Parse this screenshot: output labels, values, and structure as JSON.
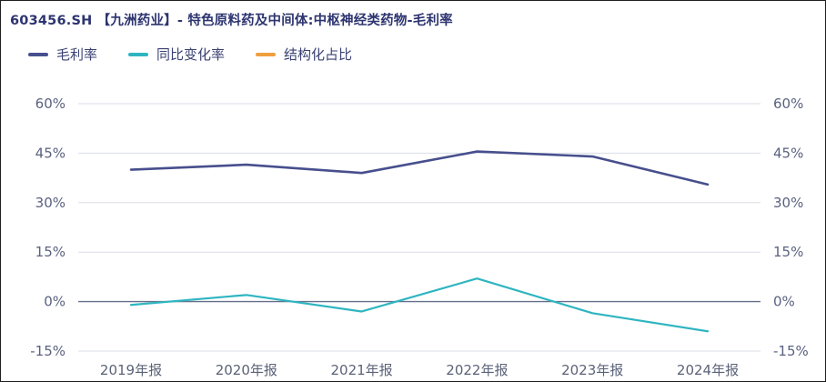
{
  "header": {
    "title": "603456.SH 【九洲药业】- 特色原料药及中间体:中枢神经类药物-毛利率"
  },
  "chart_data": {
    "type": "line",
    "title": "603456.SH 【九洲药业】- 特色原料药及中间体:中枢神经类药物-毛利率",
    "categories": [
      "2019年报",
      "2020年报",
      "2021年报",
      "2022年报",
      "2023年报",
      "2024年报"
    ],
    "series": [
      {
        "name": "毛利率",
        "color": "#474f8d",
        "values": [
          40,
          41.5,
          39,
          45.5,
          44,
          35.5
        ]
      },
      {
        "name": "同比变化率",
        "color": "#2fb5c0",
        "values": [
          -1,
          2,
          -3,
          7,
          -3.5,
          -9
        ]
      },
      {
        "name": "结构化占比",
        "color": "#ef9e3e",
        "values": []
      }
    ],
    "ylim": [
      -15,
      60
    ],
    "yticks": [
      60,
      45,
      30,
      15,
      0,
      -15
    ],
    "ytick_format": "percent",
    "grid": true,
    "legend_position": "top-left",
    "axis_mirrored": true
  },
  "style": {
    "title_color": "#2d3470",
    "legend_text_color": "#3a4273",
    "tick_color": "#5a6280",
    "xlabel_color": "#5b6378",
    "grid_color": "#dadde6",
    "zero_line_color": "#666f8a",
    "background": "#ffffff",
    "border_color": "#1f1f1f"
  }
}
